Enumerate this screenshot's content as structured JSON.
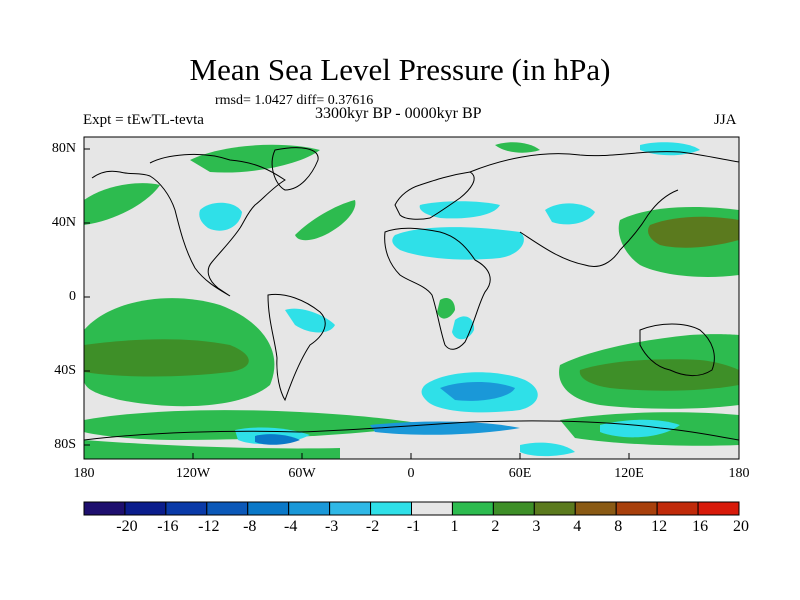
{
  "title": "Mean Sea Level Pressure (in hPa)",
  "stats": "rmsd= 1.0427 diff= 0.37616",
  "experiment": "Expt = tEwTL-tevta",
  "period": "3300kyr BP - 0000kyr BP",
  "season": "JJA",
  "axes": {
    "x_ticks": [
      "180",
      "120W",
      "60W",
      "0",
      "60E",
      "120E",
      "180"
    ],
    "y_ticks": [
      "80N",
      "40N",
      "0",
      "40S",
      "80S"
    ]
  },
  "colorbar": {
    "labels": [
      "-20",
      "-16",
      "-12",
      "-8",
      "-4",
      "-3",
      "-2",
      "-1",
      "1",
      "2",
      "3",
      "4",
      "8",
      "12",
      "16",
      "20"
    ],
    "colors": [
      "#1e0f6e",
      "#0b1d8c",
      "#0a3aa8",
      "#0b58b8",
      "#0a78c8",
      "#1a98d8",
      "#2fb8e6",
      "#2fe0e8",
      "#e6e6e6",
      "#2dbb4f",
      "#3e8f28",
      "#5b7a1e",
      "#8a5a14",
      "#a8400c",
      "#c02a0a",
      "#d81a0a"
    ]
  },
  "colors": {
    "land_none": "#e6e6e6",
    "pos1": "#2dbb4f",
    "pos2": "#3e8f28",
    "pos3": "#5b7a1e",
    "neg1": "#2fe0e8",
    "neg2": "#2fb8e6",
    "neg3": "#1a98d8",
    "neg4": "#0a78c8"
  }
}
